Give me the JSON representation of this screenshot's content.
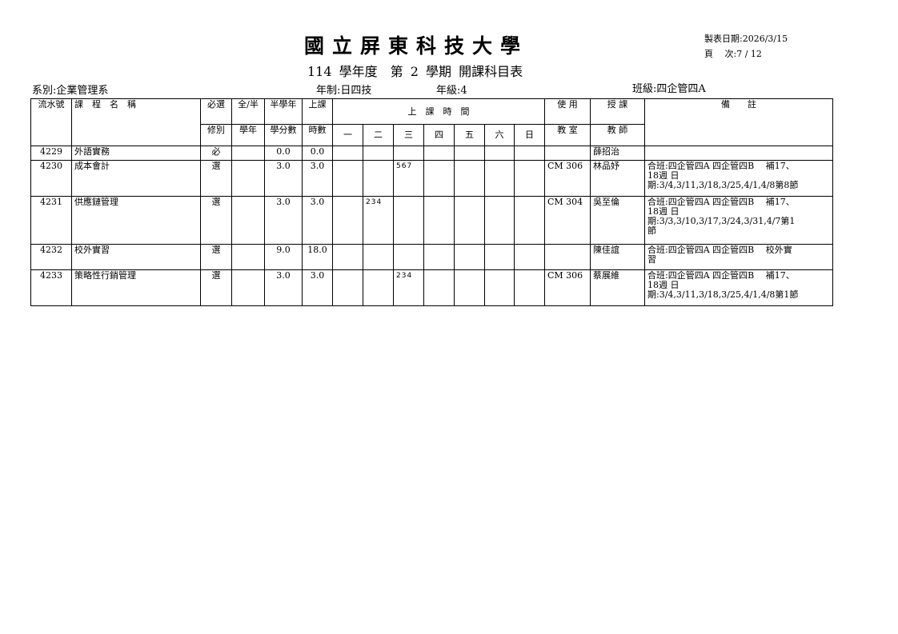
{
  "header": {
    "title": "國立屏東科技大學",
    "subtitle": "114 學年度　第 2 學期 開課科目表",
    "print_date": "製表日期:2026/3/15",
    "page": "頁　 次:7 / 12",
    "department": "系別:企業管理系",
    "system": "年制:日四技",
    "grade": "年級:4",
    "class": "班級:四企管四A"
  },
  "columns": {
    "serial": "流水號",
    "course_name": "課　程　名　稱",
    "req_top": "必選",
    "req_bottom": "修別",
    "full_top": "全/半",
    "full_bottom": "學年",
    "credit_top": "半學年",
    "credit_bottom": "學分數",
    "hours_top": "上課",
    "hours_bottom": "時數",
    "schedule": "上　課　時　間",
    "days": [
      "一",
      "二",
      "三",
      "四",
      "五",
      "六",
      "日"
    ],
    "room_top": "使 用",
    "room_bottom": "教 室",
    "teacher_top": "授 課",
    "teacher_bottom": "教 師",
    "remark": "備　　註"
  },
  "rows": [
    {
      "serial": "4229",
      "name": "外語實務",
      "req": "必",
      "full": "",
      "credits": "0.0",
      "hours": "0.0",
      "days": [
        "",
        "",
        "",
        "",
        "",
        "",
        ""
      ],
      "room": "",
      "teacher": "薛招治",
      "remark": [
        "",
        ""
      ]
    },
    {
      "serial": "4230",
      "name": "成本會計",
      "req": "選",
      "full": "",
      "credits": "3.0",
      "hours": "3.0",
      "days": [
        "",
        "",
        "567",
        "",
        "",
        "",
        ""
      ],
      "room": "CM 306",
      "teacher": "林品妤",
      "remark": [
        "合班:四企管四A 四企管四B　 補17、",
        "18週 日",
        "期:3/4,3/11,3/18,3/25,4/1,4/8第8節"
      ]
    },
    {
      "serial": "4231",
      "name": "供應鏈管理",
      "req": "選",
      "full": "",
      "credits": "3.0",
      "hours": "3.0",
      "days": [
        "",
        "234",
        "",
        "",
        "",
        "",
        ""
      ],
      "room": "CM 304",
      "teacher": "吳至倫",
      "remark": [
        "合班:四企管四A 四企管四B　 補17、",
        "18週 日",
        "期:3/3,3/10,3/17,3/24,3/31,4/7第1",
        "節"
      ]
    },
    {
      "serial": "4232",
      "name": "校外實習",
      "req": "選",
      "full": "",
      "credits": "9.0",
      "hours": "18.0",
      "days": [
        "",
        "",
        "",
        "",
        "",
        "",
        ""
      ],
      "room": "",
      "teacher": "陳佳誼",
      "remark": [
        "合班:四企管四A 四企管四B　 校外實",
        "習"
      ]
    },
    {
      "serial": "4233",
      "name": "策略性行銷管理",
      "req": "選",
      "full": "",
      "credits": "3.0",
      "hours": "3.0",
      "days": [
        "",
        "",
        "234",
        "",
        "",
        "",
        ""
      ],
      "room": "CM 306",
      "teacher": "蔡展維",
      "remark": [
        "合班:四企管四A 四企管四B　 補17、",
        "18週 日",
        "期:3/4,3/11,3/18,3/25,4/1,4/8第1節"
      ]
    }
  ]
}
